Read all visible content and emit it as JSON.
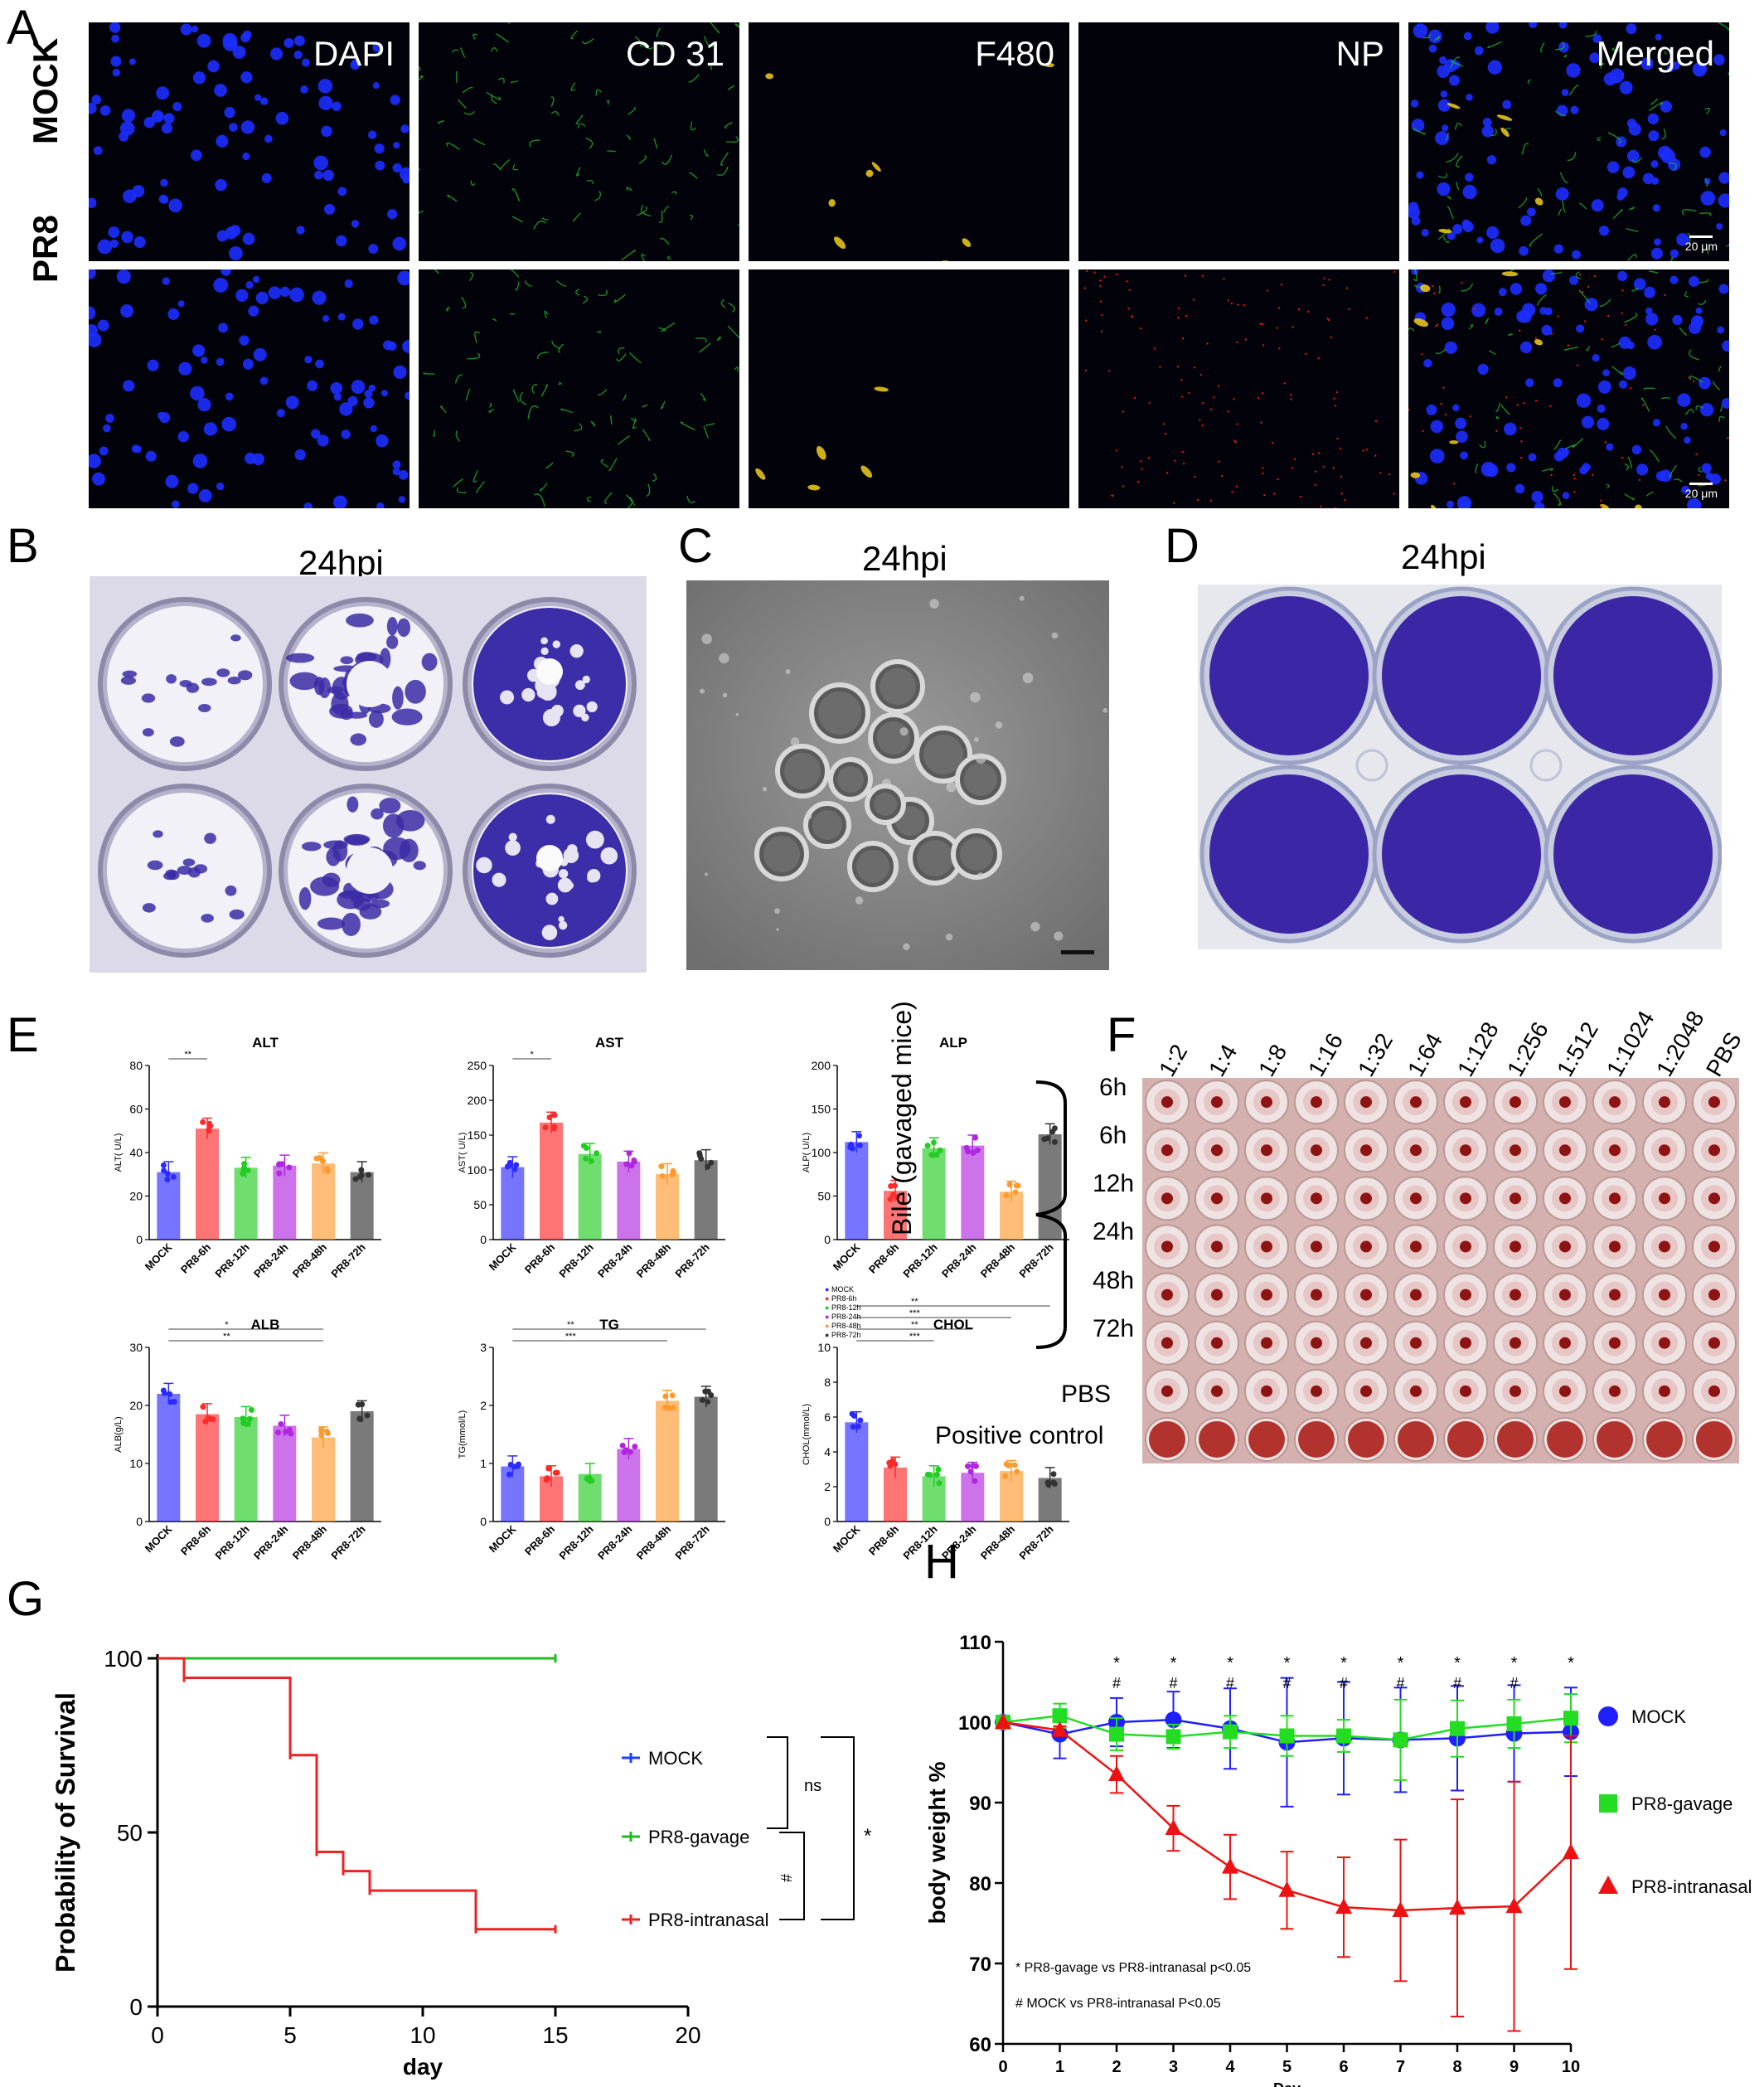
{
  "panel_letters": {
    "A": "A",
    "B": "B",
    "C": "C",
    "D": "D",
    "E": "E",
    "F": "F",
    "G": "G",
    "H": "H"
  },
  "panelA": {
    "rows": [
      "MOCK",
      "PR8"
    ],
    "columns": [
      "DAPI",
      "CD 31",
      "F480",
      "NP",
      "Merged"
    ],
    "scale_bar": "20 μm"
  },
  "panelB": {
    "title": "24hpi"
  },
  "panelC": {
    "title": "24hpi"
  },
  "panelD": {
    "title": "24hpi"
  },
  "panelE": {
    "legend": [
      "MOCK",
      "PR8-6h",
      "PR8-12h",
      "PR8-24h",
      "PR8-48h",
      "PR8-72h"
    ],
    "categories": [
      "MOCK",
      "PR8-6h",
      "PR8-12h",
      "PR8-24h",
      "PR8-48h",
      "PR8-72h"
    ],
    "colors": [
      "#2b2bff",
      "#ff2b2b",
      "#22cc22",
      "#b026e0",
      "#ff9a2e",
      "#333333"
    ]
  },
  "panelF": {
    "dilutions": [
      "1:2",
      "1:4",
      "1:8",
      "1:16",
      "1:32",
      "1:64",
      "1:128",
      "1:256",
      "1:512",
      "1:1024",
      "1:2048",
      "PBS"
    ],
    "rows": [
      "6h",
      "6h",
      "12h",
      "24h",
      "48h",
      "72h"
    ],
    "group_label": "Bile (gavaged mice)",
    "pbs_label": "PBS",
    "positive_label": "Positive control"
  },
  "panelG": {
    "legend": [
      {
        "name": "MOCK",
        "color": "#1f3fff"
      },
      {
        "name": "PR8-gavage",
        "color": "#22bb22"
      },
      {
        "name": "PR8-intranasal",
        "color": "#ee2222"
      }
    ],
    "sig_ns": "ns",
    "sig_hash": "#",
    "sig_star": "*"
  },
  "panelH": {
    "legend": [
      {
        "name": "MOCK",
        "color": "#1f1fff"
      },
      {
        "name": "PR8-gavage",
        "color": "#22dd22"
      },
      {
        "name": "PR8-intranasal",
        "color": "#ee1111"
      }
    ],
    "note1": "* PR8-gavage vs PR8-intranasal  p<0.05",
    "note2": "# MOCK vs PR8-intranasal P<0.05"
  },
  "chart_data": [
    {
      "type": "bar",
      "title": "ALT",
      "ylabel": "ALT( U/L)",
      "ylim": [
        0,
        80
      ],
      "categories": [
        "MOCK",
        "PR8-6h",
        "PR8-12h",
        "PR8-24h",
        "PR8-48h",
        "PR8-72h"
      ],
      "values": [
        31,
        51,
        33,
        34,
        35,
        31
      ],
      "sig": [
        "**"
      ]
    },
    {
      "type": "bar",
      "title": "AST",
      "ylabel": "AST( U/L)",
      "ylim": [
        0,
        250
      ],
      "categories": [
        "MOCK",
        "PR8-6h",
        "PR8-12h",
        "PR8-24h",
        "PR8-48h",
        "PR8-72h"
      ],
      "values": [
        104,
        168,
        123,
        112,
        94,
        114
      ],
      "sig": [
        "*"
      ]
    },
    {
      "type": "bar",
      "title": "ALP",
      "ylabel": "ALP( U/L)",
      "ylim": [
        0,
        200
      ],
      "categories": [
        "MOCK",
        "PR8-6h",
        "PR8-12h",
        "PR8-24h",
        "PR8-48h",
        "PR8-72h"
      ],
      "values": [
        112,
        56,
        105,
        108,
        55,
        121
      ],
      "sig": []
    },
    {
      "type": "bar",
      "title": "ALB",
      "ylabel": "ALB(g/L)",
      "ylim": [
        0,
        30
      ],
      "categories": [
        "MOCK",
        "PR8-6h",
        "PR8-12h",
        "PR8-24h",
        "PR8-48h",
        "PR8-72h"
      ],
      "values": [
        22,
        18.5,
        18,
        16.5,
        14.5,
        19
      ],
      "sig": [
        "**",
        "*"
      ]
    },
    {
      "type": "bar",
      "title": "TG",
      "ylabel": "TG(mmol/L)",
      "ylim": [
        0,
        3
      ],
      "categories": [
        "MOCK",
        "PR8-6h",
        "PR8-12h",
        "PR8-24h",
        "PR8-48h",
        "PR8-72h"
      ],
      "values": [
        0.95,
        0.78,
        0.82,
        1.25,
        2.08,
        2.15
      ],
      "sig": [
        "***",
        "**"
      ]
    },
    {
      "type": "bar",
      "title": "CHOL",
      "ylabel": "CHOL(mmol/L)",
      "ylim": [
        0,
        10
      ],
      "categories": [
        "MOCK",
        "PR8-6h",
        "PR8-12h",
        "PR8-24h",
        "PR8-48h",
        "PR8-72h"
      ],
      "values": [
        5.7,
        3.1,
        2.6,
        2.8,
        2.9,
        2.5
      ],
      "sig": [
        "***",
        "**",
        "***",
        "**"
      ]
    },
    {
      "type": "line",
      "title": "",
      "xlabel": "day",
      "ylabel": "Probability of Survival",
      "xlim": [
        0,
        20
      ],
      "ylim": [
        0,
        100
      ],
      "xticks": [
        0,
        5,
        10,
        15,
        20
      ],
      "yticks": [
        0,
        50,
        100
      ],
      "series": [
        {
          "name": "MOCK",
          "x": [
            0,
            15
          ],
          "y": [
            100,
            100
          ]
        },
        {
          "name": "PR8-gavage",
          "x": [
            0,
            15
          ],
          "y": [
            100,
            100
          ]
        },
        {
          "name": "PR8-intranasal",
          "x": [
            0,
            1,
            5,
            6,
            7,
            8,
            12,
            15
          ],
          "y": [
            100,
            94.4,
            72.2,
            44.4,
            38.9,
            33.3,
            22.2,
            22.2
          ]
        }
      ]
    },
    {
      "type": "line",
      "title": "",
      "xlabel": "Day",
      "ylabel": "body weight %",
      "xlim": [
        0,
        10
      ],
      "ylim": [
        60,
        110
      ],
      "xticks": [
        0,
        1,
        2,
        3,
        4,
        5,
        6,
        7,
        8,
        9,
        10
      ],
      "yticks": [
        60,
        70,
        80,
        90,
        100,
        110
      ],
      "series": [
        {
          "name": "MOCK",
          "x": [
            0,
            1,
            2,
            3,
            4,
            5,
            6,
            7,
            8,
            9,
            10
          ],
          "y": [
            100,
            98.5,
            100,
            100.3,
            99.2,
            97.5,
            98,
            97.8,
            98,
            98.6,
            98.8
          ],
          "err": [
            0,
            3,
            3,
            3.5,
            5,
            8,
            7,
            6.5,
            6.5,
            6,
            5.5
          ]
        },
        {
          "name": "PR8-gavage",
          "x": [
            0,
            1,
            2,
            3,
            4,
            5,
            6,
            7,
            8,
            9,
            10
          ],
          "y": [
            100,
            100.8,
            98.5,
            98.2,
            98.8,
            98.3,
            98.3,
            97.8,
            99.2,
            99.8,
            100.5
          ],
          "err": [
            0,
            1.5,
            2,
            1.5,
            2,
            2.5,
            2,
            5,
            3.5,
            3,
            3
          ]
        },
        {
          "name": "PR8-intranasal",
          "x": [
            0,
            1,
            2,
            3,
            4,
            5,
            6,
            7,
            8,
            9,
            10
          ],
          "y": [
            100,
            99,
            93.5,
            86.8,
            82,
            79.1,
            77,
            76.6,
            76.9,
            77.1,
            83.8
          ],
          "err": [
            0,
            0.5,
            2.3,
            2.8,
            4,
            4.8,
            6.2,
            8.8,
            13.5,
            15.5,
            14.5
          ]
        }
      ],
      "marks": [
        "",
        "",
        "*#",
        "*#",
        "*#",
        "*#",
        "*#",
        "*#",
        "*#",
        "*#",
        "*"
      ]
    }
  ]
}
